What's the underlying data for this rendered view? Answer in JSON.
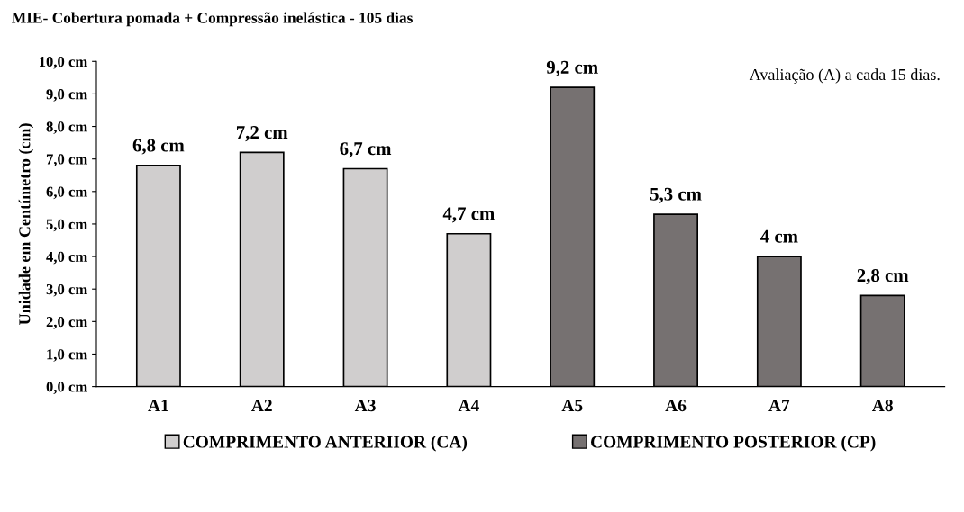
{
  "chart_data": {
    "type": "bar",
    "title": "MIE- Cobertura pomada + Compressão inelástica - 105 dias",
    "ylabel": "Unidade em Centímetro (cm)",
    "categories": [
      "A1",
      "A2",
      "A3",
      "A4",
      "A5",
      "A6",
      "A7",
      "A8"
    ],
    "series": [
      {
        "name": "COMPRIMENTO ANTERIIOR (CA)",
        "color": "#d0cece",
        "values": [
          6.8,
          7.2,
          6.7,
          4.7,
          null,
          null,
          null,
          null
        ],
        "value_labels": [
          "6,8 cm",
          "7,2 cm",
          "6,7 cm",
          "4,7 cm",
          null,
          null,
          null,
          null
        ]
      },
      {
        "name": "COMPRIMENTO POSTERIOR (CP)",
        "color": "#767171",
        "values": [
          null,
          null,
          null,
          null,
          9.2,
          5.3,
          4,
          2.8
        ],
        "value_labels": [
          null,
          null,
          null,
          null,
          "9,2 cm",
          "5,3 cm",
          "4 cm",
          "2,8 cm"
        ]
      }
    ],
    "ylim": [
      0,
      10
    ],
    "yticks": [
      {
        "value": 0,
        "label": "0,0 cm"
      },
      {
        "value": 1,
        "label": "1,0 cm"
      },
      {
        "value": 2,
        "label": "2,0 cm"
      },
      {
        "value": 3,
        "label": "3,0 cm"
      },
      {
        "value": 4,
        "label": "4,0 cm"
      },
      {
        "value": 5,
        "label": "5,0 cm"
      },
      {
        "value": 6,
        "label": "6,0 cm"
      },
      {
        "value": 7,
        "label": "7,0 cm"
      },
      {
        "value": 8,
        "label": "8,0 cm"
      },
      {
        "value": 9,
        "label": "9,0 cm"
      },
      {
        "value": 10,
        "label": "10,0 cm"
      }
    ],
    "annotations": [
      "Avaliação (A) a cada 15 dias."
    ],
    "grid": false,
    "legend": "bottom"
  }
}
